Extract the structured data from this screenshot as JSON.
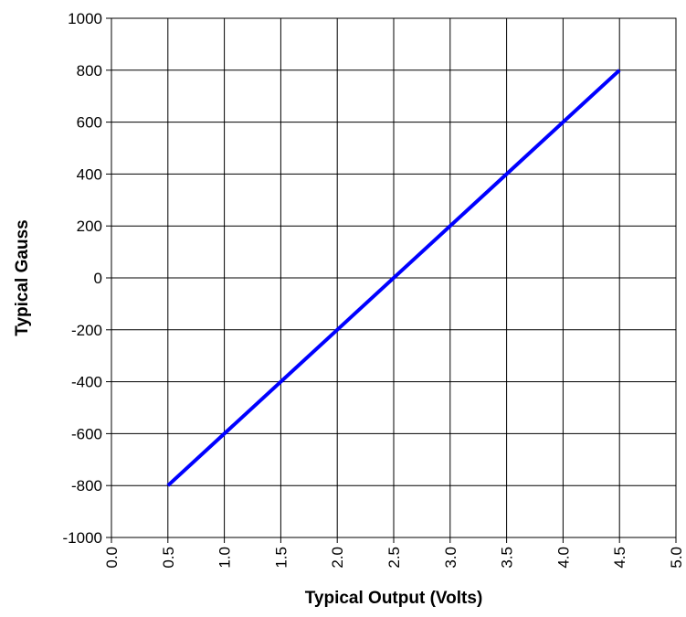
{
  "chart_data": {
    "type": "line",
    "title": "",
    "xlabel": "Typical Output (Volts)",
    "ylabel": "Typical Gauss",
    "xlim": [
      0.0,
      5.0
    ],
    "ylim": [
      -1000,
      1000
    ],
    "x_ticks": [
      0.0,
      0.5,
      1.0,
      1.5,
      2.0,
      2.5,
      3.0,
      3.5,
      4.0,
      4.5,
      5.0
    ],
    "x_tick_labels": [
      "0.0",
      "0.5",
      "1.0",
      "1.5",
      "2.0",
      "2.5",
      "3.0",
      "3.5",
      "4.0",
      "4.5",
      "5.0"
    ],
    "y_ticks": [
      -1000,
      -800,
      -600,
      -400,
      -200,
      0,
      200,
      400,
      600,
      800,
      1000
    ],
    "y_tick_labels": [
      "-1000",
      "-800",
      "-600",
      "-400",
      "-200",
      "0",
      "200",
      "400",
      "600",
      "800",
      "1000"
    ],
    "grid": true,
    "legend": "none",
    "series": [
      {
        "color": "#0000ff",
        "x": [
          0.5,
          4.5
        ],
        "y": [
          -800,
          800
        ]
      }
    ]
  }
}
